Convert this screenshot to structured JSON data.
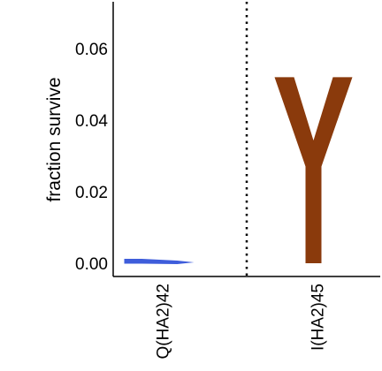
{
  "chart_data": {
    "type": "logo",
    "ylabel": "fraction survive",
    "ylim": [
      0,
      0.072
    ],
    "yticks": [
      0.0,
      0.02,
      0.04,
      0.06
    ],
    "ytick_labels": [
      "0.00",
      "0.02",
      "0.04",
      "0.06"
    ],
    "grid": false,
    "separator": "dotted",
    "positions": [
      {
        "label": "Q(HA2)42",
        "letters": [
          {
            "letter": "Y",
            "value": 0.0015,
            "color": "#3e5ddb"
          }
        ]
      },
      {
        "label": "I(HA2)45",
        "letters": [
          {
            "letter": "Y",
            "value": 0.052,
            "color": "#8a3a0c"
          }
        ]
      }
    ]
  }
}
